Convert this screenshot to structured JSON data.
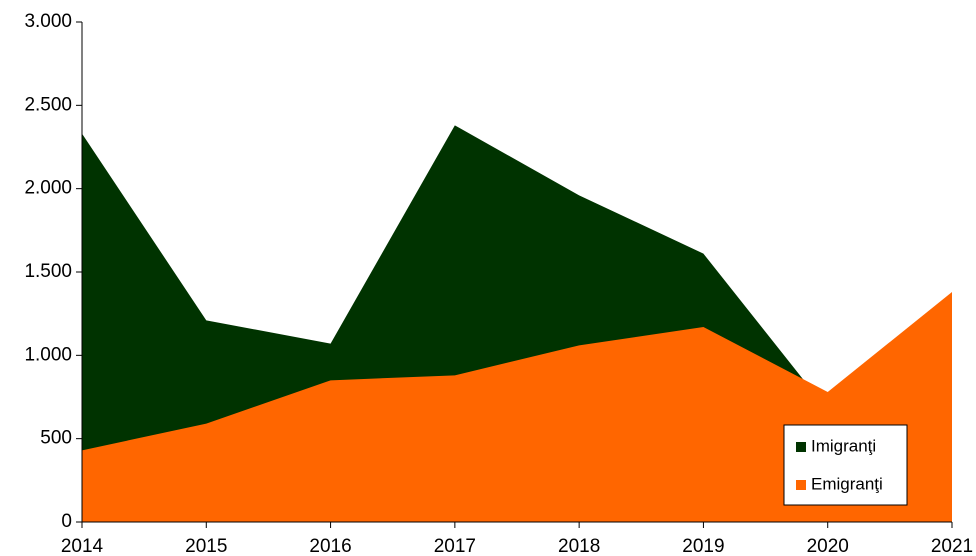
{
  "chart_data": {
    "type": "area",
    "categories": [
      "2014",
      "2015",
      "2016",
      "2017",
      "2018",
      "2019",
      "2020",
      "2021"
    ],
    "series": [
      {
        "name": "Imigranţi",
        "color": "#003300",
        "values": [
          2330,
          1210,
          1070,
          2380,
          1960,
          1610,
          670,
          1000
        ]
      },
      {
        "name": "Emigranţi",
        "color": "#ff6600",
        "values": [
          430,
          590,
          850,
          880,
          1060,
          1170,
          780,
          1380
        ]
      }
    ],
    "ylim": [
      0,
      3000
    ],
    "yticks": [
      0,
      500,
      {
        "value": 1000,
        "label": "1.000"
      },
      {
        "value": 1500,
        "label": "1.500"
      },
      {
        "value": 2000,
        "label": "2.000"
      },
      {
        "value": 2500,
        "label": "2.500"
      },
      {
        "value": 3000,
        "label": "3.000"
      }
    ],
    "legend": "bottom-right"
  }
}
